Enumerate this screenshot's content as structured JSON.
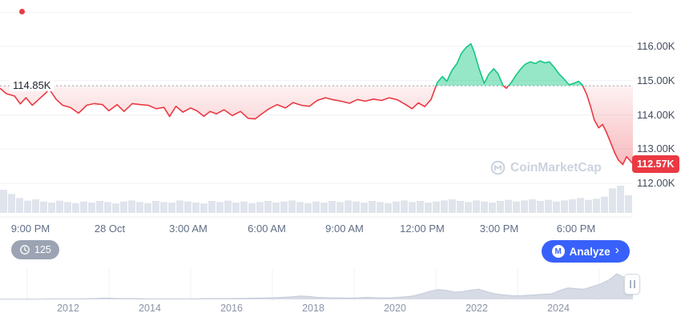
{
  "price_chart": {
    "baseline_label": "114.85K",
    "current_price_badge": "112.57K",
    "watermark_text": "CoinMarketCap",
    "y_axis_labels": [
      "116.00K",
      "115.00K",
      "114.00K",
      "113.00K",
      "112.00K"
    ],
    "x_axis_labels": [
      "9:00 PM",
      "28 Oct",
      "3:00 AM",
      "6:00 AM",
      "9:00 AM",
      "12:00 PM",
      "3:00 PM",
      "6:00 PM"
    ]
  },
  "controls": {
    "history_count": "125",
    "analyze_button": "Analyze",
    "analyze_chevron": "›",
    "logo_letter": "M"
  },
  "brush": {
    "year_labels": [
      "2012",
      "2014",
      "2016",
      "2018",
      "2020",
      "2022",
      "2024"
    ]
  },
  "colors": {
    "up": "#16c784",
    "down": "#ea3943",
    "accent_blue": "#3861fb",
    "axis_text": "#434b5f",
    "grid": "#eff1f5",
    "baseline_dot": "#9aa3b5",
    "volume": "#e0e4ec",
    "brush_fill": "#d6dbe5",
    "brush_stroke": "#c3cad7",
    "watermark": "#ccd2de"
  },
  "chart_data": [
    {
      "type": "line",
      "name": "btc-price-24h",
      "title": "BTC/USD intraday price with previous-close baseline",
      "baseline": 114.85,
      "last_value": 112.57,
      "ylim": [
        111.7,
        117.35
      ],
      "y_grid": [
        117,
        116,
        115,
        114,
        113,
        112
      ],
      "y_tick_labels": [
        "116.00K",
        "115.00K",
        "114.00K",
        "113.00K",
        "112.00K"
      ],
      "x_tick_labels": [
        "9:00 PM",
        "28 Oct",
        "3:00 AM",
        "6:00 AM",
        "9:00 AM",
        "12:00 PM",
        "3:00 PM",
        "6:00 PM"
      ],
      "x_tick_t": [
        0.048,
        0.173,
        0.297,
        0.422,
        0.544,
        0.667,
        0.789,
        0.91
      ],
      "up_color": "#16c784",
      "down_color": "#ea3943",
      "points": [
        [
          0.0,
          114.78
        ],
        [
          0.01,
          114.62
        ],
        [
          0.023,
          114.55
        ],
        [
          0.032,
          114.32
        ],
        [
          0.041,
          114.5
        ],
        [
          0.051,
          114.28
        ],
        [
          0.061,
          114.45
        ],
        [
          0.07,
          114.6
        ],
        [
          0.078,
          114.75
        ],
        [
          0.089,
          114.45
        ],
        [
          0.099,
          114.28
        ],
        [
          0.111,
          114.22
        ],
        [
          0.124,
          114.05
        ],
        [
          0.137,
          114.28
        ],
        [
          0.149,
          114.33
        ],
        [
          0.162,
          114.3
        ],
        [
          0.172,
          114.12
        ],
        [
          0.185,
          114.3
        ],
        [
          0.196,
          114.1
        ],
        [
          0.209,
          114.33
        ],
        [
          0.222,
          114.3
        ],
        [
          0.234,
          114.28
        ],
        [
          0.247,
          114.18
        ],
        [
          0.259,
          114.22
        ],
        [
          0.268,
          113.95
        ],
        [
          0.278,
          114.25
        ],
        [
          0.289,
          114.08
        ],
        [
          0.301,
          114.2
        ],
        [
          0.311,
          114.12
        ],
        [
          0.322,
          113.96
        ],
        [
          0.332,
          114.1
        ],
        [
          0.342,
          114.03
        ],
        [
          0.354,
          114.15
        ],
        [
          0.367,
          113.98
        ],
        [
          0.38,
          114.1
        ],
        [
          0.392,
          113.9
        ],
        [
          0.403,
          113.88
        ],
        [
          0.413,
          114.02
        ],
        [
          0.425,
          114.18
        ],
        [
          0.438,
          114.3
        ],
        [
          0.451,
          114.2
        ],
        [
          0.463,
          114.36
        ],
        [
          0.476,
          114.28
        ],
        [
          0.489,
          114.25
        ],
        [
          0.501,
          114.42
        ],
        [
          0.514,
          114.5
        ],
        [
          0.527,
          114.44
        ],
        [
          0.539,
          114.4
        ],
        [
          0.552,
          114.34
        ],
        [
          0.565,
          114.45
        ],
        [
          0.577,
          114.4
        ],
        [
          0.59,
          114.46
        ],
        [
          0.603,
          114.42
        ],
        [
          0.615,
          114.5
        ],
        [
          0.628,
          114.44
        ],
        [
          0.641,
          114.3
        ],
        [
          0.651,
          114.18
        ],
        [
          0.661,
          114.35
        ],
        [
          0.671,
          114.24
        ],
        [
          0.681,
          114.45
        ],
        [
          0.691,
          114.95
        ],
        [
          0.699,
          115.12
        ],
        [
          0.706,
          114.98
        ],
        [
          0.714,
          115.3
        ],
        [
          0.722,
          115.5
        ],
        [
          0.729,
          115.8
        ],
        [
          0.737,
          115.98
        ],
        [
          0.744,
          116.08
        ],
        [
          0.749,
          115.85
        ],
        [
          0.757,
          115.35
        ],
        [
          0.765,
          114.92
        ],
        [
          0.772,
          115.18
        ],
        [
          0.78,
          115.35
        ],
        [
          0.787,
          115.2
        ],
        [
          0.795,
          114.85
        ],
        [
          0.8,
          114.78
        ],
        [
          0.808,
          114.95
        ],
        [
          0.815,
          115.15
        ],
        [
          0.823,
          115.35
        ],
        [
          0.83,
          115.48
        ],
        [
          0.838,
          115.55
        ],
        [
          0.846,
          115.5
        ],
        [
          0.853,
          115.58
        ],
        [
          0.861,
          115.52
        ],
        [
          0.868,
          115.55
        ],
        [
          0.876,
          115.38
        ],
        [
          0.884,
          115.18
        ],
        [
          0.891,
          115.05
        ],
        [
          0.899,
          114.88
        ],
        [
          0.906,
          114.92
        ],
        [
          0.914,
          114.98
        ],
        [
          0.92,
          114.88
        ],
        [
          0.927,
          114.6
        ],
        [
          0.933,
          114.25
        ],
        [
          0.939,
          113.85
        ],
        [
          0.946,
          113.62
        ],
        [
          0.952,
          113.72
        ],
        [
          0.958,
          113.5
        ],
        [
          0.965,
          113.18
        ],
        [
          0.971,
          112.9
        ],
        [
          0.977,
          112.68
        ],
        [
          0.984,
          112.55
        ],
        [
          0.99,
          112.78
        ],
        [
          1.0,
          112.57
        ]
      ]
    },
    {
      "type": "area",
      "name": "volume",
      "values": [
        0.85,
        0.7,
        0.55,
        0.45,
        0.5,
        0.42,
        0.38,
        0.45,
        0.4,
        0.36,
        0.42,
        0.38,
        0.44,
        0.4,
        0.35,
        0.42,
        0.46,
        0.4,
        0.36,
        0.44,
        0.4,
        0.38,
        0.46,
        0.42,
        0.38,
        0.35,
        0.44,
        0.4,
        0.45,
        0.38,
        0.42,
        0.36,
        0.4,
        0.44,
        0.38,
        0.42,
        0.46,
        0.4,
        0.36,
        0.42,
        0.38,
        0.44,
        0.4,
        0.46,
        0.42,
        0.38,
        0.44,
        0.4,
        0.36,
        0.42,
        0.46,
        0.4,
        0.44,
        0.38,
        0.42,
        0.46,
        0.5,
        0.44,
        0.4,
        0.46,
        0.42,
        0.38,
        0.44,
        0.48,
        0.42,
        0.46,
        0.5,
        0.44,
        0.48,
        0.42,
        0.46,
        0.5,
        0.55,
        0.48,
        0.52,
        0.6,
        0.9,
        1.0,
        0.65
      ]
    },
    {
      "type": "area",
      "name": "history-brush",
      "x_tick_labels": [
        "2012",
        "2014",
        "2016",
        "2018",
        "2020",
        "2022",
        "2024"
      ],
      "values": [
        0.01,
        0.01,
        0.01,
        0.01,
        0.01,
        0.01,
        0.02,
        0.02,
        0.02,
        0.02,
        0.02,
        0.03,
        0.04,
        0.05,
        0.04,
        0.03,
        0.03,
        0.03,
        0.02,
        0.02,
        0.02,
        0.02,
        0.02,
        0.02,
        0.02,
        0.03,
        0.03,
        0.03,
        0.03,
        0.04,
        0.04,
        0.05,
        0.05,
        0.06,
        0.07,
        0.08,
        0.1,
        0.13,
        0.12,
        0.08,
        0.07,
        0.06,
        0.06,
        0.05,
        0.06,
        0.08,
        0.07,
        0.06,
        0.06,
        0.08,
        0.1,
        0.14,
        0.22,
        0.32,
        0.38,
        0.35,
        0.28,
        0.3,
        0.36,
        0.4,
        0.3,
        0.22,
        0.18,
        0.15,
        0.14,
        0.16,
        0.18,
        0.2,
        0.22,
        0.35,
        0.45,
        0.42,
        0.4,
        0.5,
        0.6,
        0.75,
        1.0,
        0.85,
        0.8
      ]
    }
  ]
}
